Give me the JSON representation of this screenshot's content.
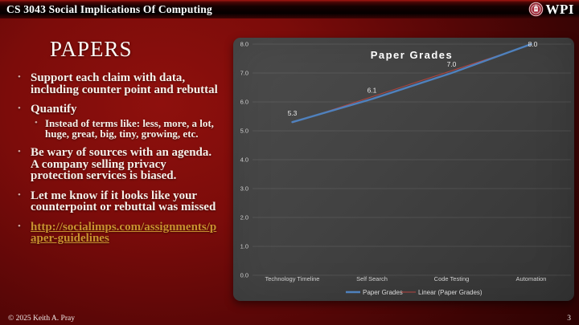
{
  "header": {
    "course": "CS 3043 Social Implications Of Computing",
    "logo": "WPI"
  },
  "slide": {
    "title": "PAPERS",
    "bullets": [
      {
        "level": 1,
        "text": "Support each claim with data, including counter point and rebuttal"
      },
      {
        "level": 1,
        "text": "Quantify"
      },
      {
        "level": 2,
        "text": "Instead of terms like: less, more, a lot, huge, great, big, tiny, growing, etc."
      },
      {
        "level": 1,
        "text": "Be wary of sources with an agenda. A company selling privacy protection services is biased."
      },
      {
        "level": 1,
        "text": "Let me know if it looks like your counterpoint or rebuttal was missed"
      },
      {
        "level": 1,
        "text": "http://socialimps.com/assignments/paper-guidelines",
        "link": true
      }
    ]
  },
  "footer": {
    "copyright": "© 2025 Keith A. Pray",
    "page_number": "3"
  },
  "chart_data": {
    "type": "line",
    "title": "Paper Grades",
    "categories": [
      "Technology Timeline",
      "Self Search",
      "Code Testing",
      "Automation"
    ],
    "series": [
      {
        "name": "Paper Grades",
        "values": [
          5.3,
          6.1,
          7.0,
          8.0
        ],
        "color": "#4f81bd",
        "line_width": 2.4,
        "trendline": false
      },
      {
        "name": "Linear (Paper Grades)",
        "values": [
          5.25,
          6.15,
          7.05,
          7.95
        ],
        "color": "#b5443f",
        "line_width": 1,
        "trendline": true
      }
    ],
    "data_labels": [
      "5.3",
      "6.1",
      "7.0",
      "8.0"
    ],
    "ylim": [
      0,
      8
    ],
    "ytick_step": 1,
    "ytick_labels": [
      "0.0",
      "1.0",
      "2.0",
      "3.0",
      "4.0",
      "5.0",
      "6.0",
      "7.0",
      "8.0"
    ],
    "grid": true,
    "legend_position": "bottom",
    "colors": {
      "plot_bg": "#3f3f3f",
      "axis_text": "#cfcfcf",
      "title_text": "#ffffff",
      "label_text": "#e9e9e9"
    }
  }
}
